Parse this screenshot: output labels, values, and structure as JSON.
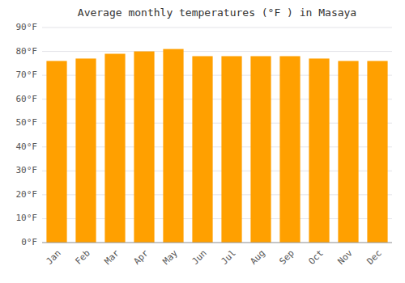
{
  "chart_data": {
    "type": "bar",
    "title": "Average monthly temperatures (°F ) in Masaya",
    "categories": [
      "Jan",
      "Feb",
      "Mar",
      "Apr",
      "May",
      "Jun",
      "Jul",
      "Aug",
      "Sep",
      "Oct",
      "Nov",
      "Dec"
    ],
    "values": [
      76,
      77,
      79,
      80,
      81,
      78,
      78,
      78,
      78,
      77,
      76,
      76
    ],
    "color": "#FFA000",
    "ylim": [
      0,
      90
    ],
    "yticks": [
      {
        "value": 0,
        "label": "0°F"
      },
      {
        "value": 10,
        "label": "10°F"
      },
      {
        "value": 20,
        "label": "20°F"
      },
      {
        "value": 30,
        "label": "30°F"
      },
      {
        "value": 40,
        "label": "40°F"
      },
      {
        "value": 50,
        "label": "50°F"
      },
      {
        "value": 60,
        "label": "60°F"
      },
      {
        "value": 70,
        "label": "70°F"
      },
      {
        "value": 80,
        "label": "80°F"
      },
      {
        "value": 90,
        "label": "90°F"
      }
    ],
    "grid": true
  }
}
